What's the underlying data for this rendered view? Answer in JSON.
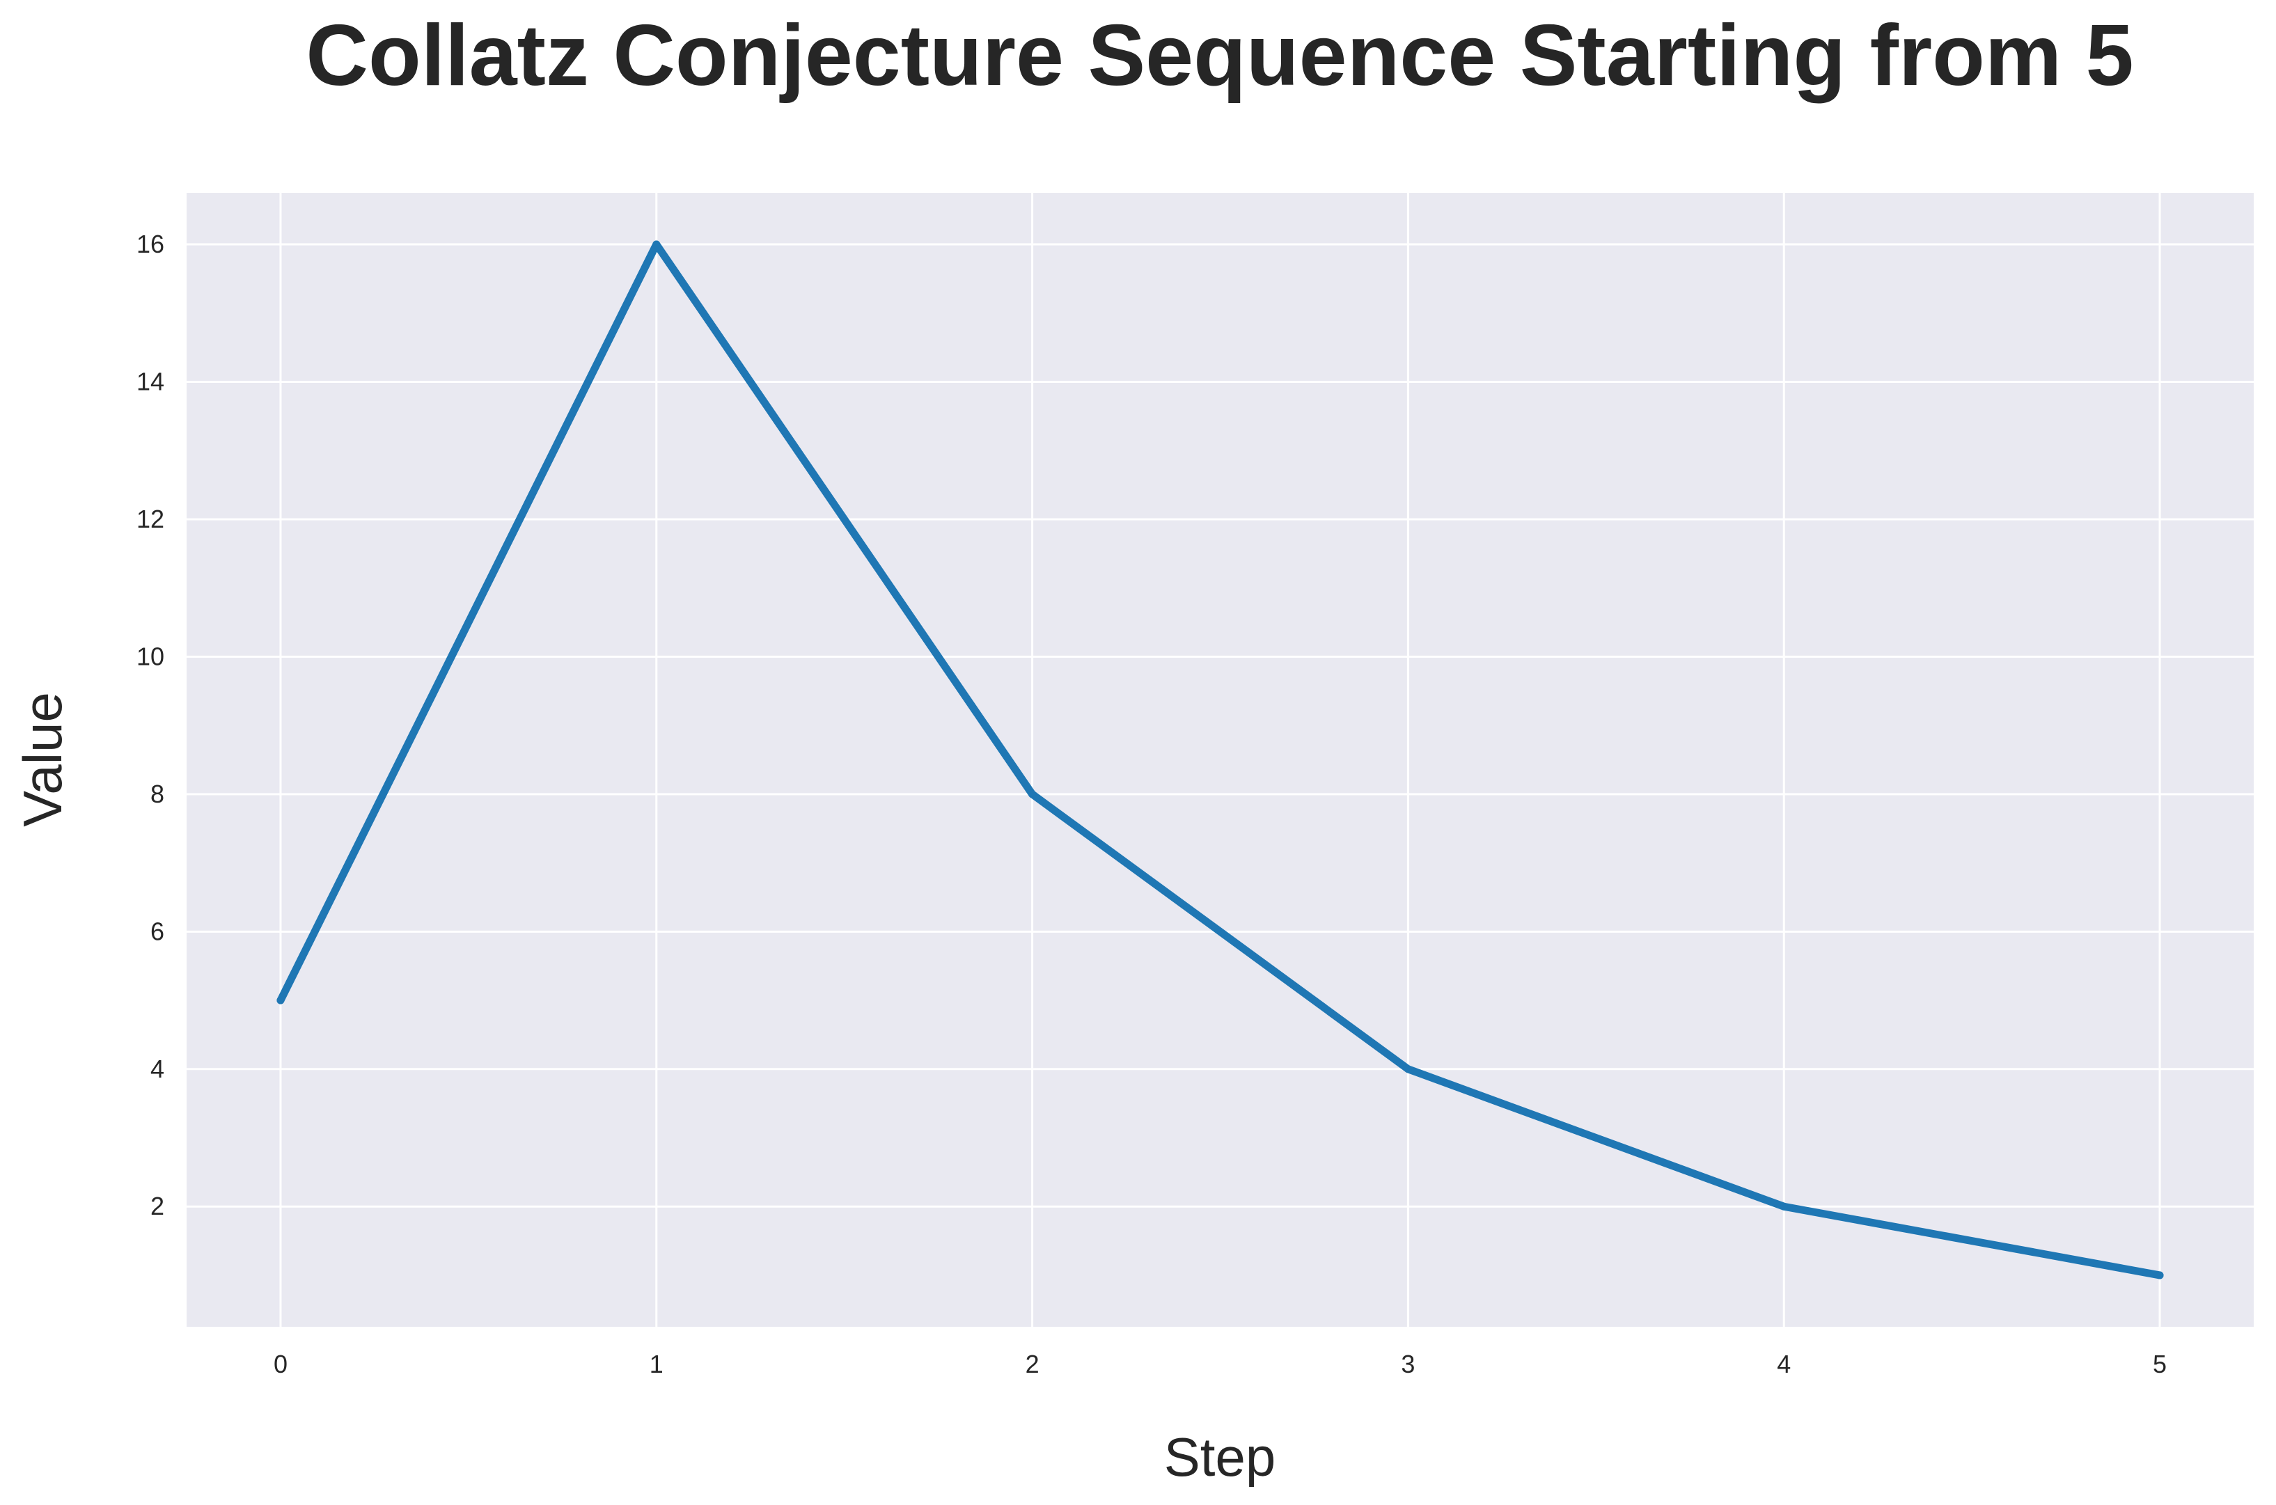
{
  "chart_data": {
    "type": "line",
    "title": "Collatz Conjecture Sequence Starting from 5",
    "xlabel": "Step",
    "ylabel": "Value",
    "x": [
      0,
      1,
      2,
      3,
      4,
      5
    ],
    "series": [
      {
        "values": [
          5,
          16,
          8,
          4,
          2,
          1
        ]
      }
    ],
    "xticks": [
      "0",
      "1",
      "2",
      "3",
      "4",
      "5"
    ],
    "yticks": [
      "2",
      "4",
      "6",
      "8",
      "10",
      "12",
      "14",
      "16"
    ],
    "xlim": [
      -0.25,
      5.25
    ],
    "ylim": [
      0.25,
      16.75
    ],
    "grid": true,
    "legend": "none",
    "colors": {
      "line": "#1f77b4",
      "plot_background": "#e9e9f1",
      "grid": "#ffffff",
      "text": "#262626"
    }
  }
}
